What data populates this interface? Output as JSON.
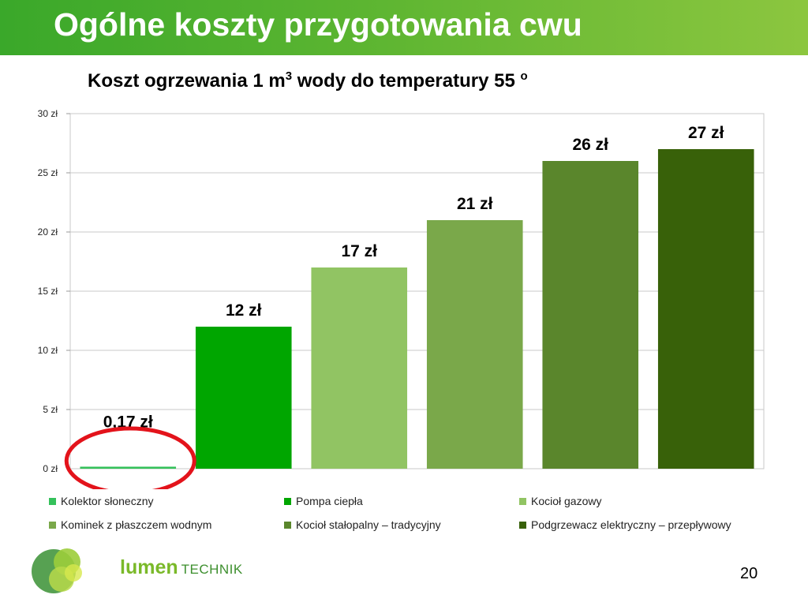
{
  "slide": {
    "title": "Ogólne koszty przygotowania cwu",
    "subtitle_main": "Koszt ogrzewania 1 m",
    "subtitle_sup": "3",
    "subtitle_rest": " wody do temperatury 55 ",
    "subtitle_deg": "o",
    "page_number": "20"
  },
  "logo": {
    "text_bold": "lumen",
    "text_small": "TECHNIK"
  },
  "colors": {
    "title_bar": "#5cb531",
    "highlight_ellipse": "#e3131b"
  },
  "chart_data": {
    "type": "bar",
    "title": "Koszt ogrzewania 1 m3 wody do temperatury 55 o",
    "ylim": [
      0,
      30
    ],
    "yticks": [
      0,
      5,
      10,
      15,
      20,
      25,
      30
    ],
    "ytick_labels": [
      "0 zł",
      "5 zł",
      "10 zł",
      "15 zł",
      "20 zł",
      "25 zł",
      "30 zł"
    ],
    "grid": true,
    "legend_position": "bottom",
    "series": [
      {
        "name": "Kolektor słoneczny",
        "value": 0.17,
        "label": "0,17 zł",
        "color": "#35c15b"
      },
      {
        "name": "Pompa ciepła",
        "value": 12,
        "label": "12 zł",
        "color": "#00a600"
      },
      {
        "name": "Kocioł gazowy",
        "value": 17,
        "label": "17 zł",
        "color": "#91c463"
      },
      {
        "name": "Kominek z płaszczem wodnym",
        "value": 21,
        "label": "21 zł",
        "color": "#7aa84a"
      },
      {
        "name": "Kocioł stałopalny – tradycyjny",
        "value": 26,
        "label": "26 zł",
        "color": "#5a862c"
      },
      {
        "name": "Podgrzewacz elektryczny – przepływowy",
        "value": 27,
        "label": "27 zł",
        "color": "#386109"
      }
    ],
    "highlighted_series": "Kolektor słoneczny"
  }
}
